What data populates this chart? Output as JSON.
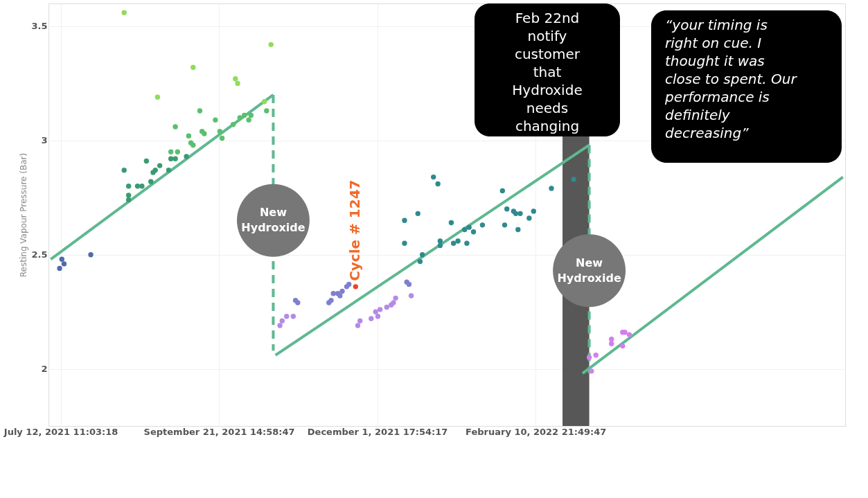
{
  "chart_data": {
    "type": "scatter",
    "ylabel": "Resting Vapour Pressure (Bar)",
    "xlim": [
      "2021-07-07",
      "2022-06-30"
    ],
    "ylim": [
      1.75,
      3.6
    ],
    "xticks": [
      {
        "value": "2021-07-12T11:03:18",
        "label": "July 12, 2021 11:03:18"
      },
      {
        "value": "2021-09-21T14:58:47",
        "label": "September 21, 2021 14:58:47"
      },
      {
        "value": "2021-12-01T17:54:17",
        "label": "December 1, 2021 17:54:17"
      },
      {
        "value": "2022-02-10T21:49:47",
        "label": "February 10, 2022 21:49:47"
      }
    ],
    "yticks": [
      2,
      2.5,
      3,
      3.5
    ],
    "grid": true,
    "marker": "circle",
    "bands": [
      {
        "axis": "x",
        "from": "2022-02-23",
        "to": "2022-03-07",
        "color": "#3a3a3a"
      }
    ],
    "series": [
      {
        "color": "#4f6bab",
        "x": [
          "2021-07-12",
          "2021-07-13",
          "2021-07-14",
          "2021-07-26"
        ],
        "values": [
          2.44,
          2.48,
          2.46,
          2.5
        ]
      },
      {
        "color": "#3b9a72",
        "x": [
          "2021-08-10",
          "2021-08-12",
          "2021-08-12",
          "2021-08-12",
          "2021-08-16",
          "2021-08-18",
          "2021-08-20",
          "2021-08-22",
          "2021-08-23",
          "2021-08-24",
          "2021-08-26",
          "2021-08-30",
          "2021-08-31",
          "2021-09-02",
          "2021-09-07"
        ],
        "values": [
          2.87,
          2.8,
          2.76,
          2.74,
          2.8,
          2.8,
          2.91,
          2.82,
          2.86,
          2.87,
          2.89,
          2.87,
          2.92,
          2.92,
          2.93
        ]
      },
      {
        "color": "#5bbf6e",
        "x": [
          "2021-08-31",
          "2021-09-02",
          "2021-09-03",
          "2021-09-08",
          "2021-09-09",
          "2021-09-10",
          "2021-09-13",
          "2021-09-14",
          "2021-09-15",
          "2021-09-20",
          "2021-09-22",
          "2021-09-23",
          "2021-09-28",
          "2021-10-01",
          "2021-10-03",
          "2021-10-05",
          "2021-10-06",
          "2021-10-13"
        ],
        "values": [
          2.95,
          3.06,
          2.95,
          3.02,
          2.99,
          2.98,
          3.13,
          3.04,
          3.03,
          3.09,
          3.04,
          3.01,
          3.07,
          3.1,
          3.11,
          3.09,
          3.11,
          3.13
        ]
      },
      {
        "color": "#8fdc5c",
        "x": [
          "2021-08-10",
          "2021-08-25",
          "2021-09-10",
          "2021-09-29",
          "2021-09-30",
          "2021-10-12",
          "2021-10-15"
        ],
        "values": [
          3.56,
          3.19,
          3.32,
          3.27,
          3.25,
          3.17,
          3.42
        ]
      },
      {
        "color": "#7f7fcf",
        "x": [
          "2021-10-26",
          "2021-10-27",
          "2021-11-10",
          "2021-11-11",
          "2021-11-12",
          "2021-11-14",
          "2021-11-15",
          "2021-11-16",
          "2021-11-18",
          "2021-11-19",
          "2021-12-15",
          "2021-12-16"
        ],
        "values": [
          2.3,
          2.29,
          2.29,
          2.3,
          2.33,
          2.33,
          2.32,
          2.34,
          2.36,
          2.37,
          2.38,
          2.37
        ]
      },
      {
        "color": "#b48ae6",
        "x": [
          "2021-10-19",
          "2021-10-20",
          "2021-10-22",
          "2021-10-25",
          "2021-11-23",
          "2021-11-24",
          "2021-11-29",
          "2021-12-01",
          "2021-12-02",
          "2021-12-03",
          "2021-12-06",
          "2021-12-08",
          "2021-12-09",
          "2021-12-10",
          "2021-12-17"
        ],
        "values": [
          2.19,
          2.21,
          2.23,
          2.23,
          2.19,
          2.21,
          2.22,
          2.25,
          2.23,
          2.26,
          2.27,
          2.28,
          2.29,
          2.31,
          2.32
        ]
      },
      {
        "color": "#e8452a",
        "x": [
          "2021-11-22"
        ],
        "values": [
          2.36
        ]
      },
      {
        "color": "#2f8a8f",
        "x": [
          "2021-12-14",
          "2021-12-14",
          "2021-12-20",
          "2021-12-21",
          "2021-12-22",
          "2021-12-27",
          "2021-12-29",
          "2021-12-30",
          "2021-12-30",
          "2022-01-04",
          "2022-01-05",
          "2022-01-07",
          "2022-01-10",
          "2022-01-11",
          "2022-01-12",
          "2022-01-14",
          "2022-01-18",
          "2022-01-27",
          "2022-01-28",
          "2022-01-29",
          "2022-02-01",
          "2022-02-02",
          "2022-02-03",
          "2022-02-04",
          "2022-02-08",
          "2022-02-10",
          "2022-02-18",
          "2022-02-28"
        ],
        "values": [
          2.65,
          2.55,
          2.68,
          2.47,
          2.5,
          2.84,
          2.81,
          2.54,
          2.56,
          2.64,
          2.55,
          2.56,
          2.61,
          2.55,
          2.62,
          2.6,
          2.63,
          2.78,
          2.63,
          2.7,
          2.69,
          2.68,
          2.61,
          2.68,
          2.66,
          2.69,
          2.79,
          2.83
        ]
      },
      {
        "color": "#d27ff0",
        "x": [
          "2022-03-07",
          "2022-03-08",
          "2022-03-10",
          "2022-03-17",
          "2022-03-17",
          "2022-03-22",
          "2022-03-22",
          "2022-03-23",
          "2022-03-25"
        ],
        "values": [
          2.05,
          1.99,
          2.06,
          2.11,
          2.13,
          2.16,
          2.1,
          2.16,
          2.15
        ]
      },
      {
        "type": "line",
        "marker": "none",
        "color": "#5fb891",
        "x": [
          "2021-07-08",
          "2021-10-16"
        ],
        "values": [
          2.48,
          3.2
        ]
      },
      {
        "type": "line",
        "marker": "none",
        "color": "#5fb891",
        "line_style": "dashed",
        "x": [
          "2021-10-16",
          "2021-10-16"
        ],
        "values": [
          3.2,
          2.08
        ]
      },
      {
        "type": "line",
        "marker": "none",
        "color": "#5fb891",
        "x": [
          "2021-10-17",
          "2022-03-07"
        ],
        "values": [
          2.06,
          2.98
        ]
      },
      {
        "type": "line",
        "marker": "none",
        "color": "#5fb891",
        "line_style": "dashed",
        "x": [
          "2022-03-07",
          "2022-03-07"
        ],
        "values": [
          2.98,
          1.98
        ]
      },
      {
        "type": "line",
        "marker": "none",
        "color": "#5fb891",
        "x": [
          "2022-03-04",
          "2022-06-29"
        ],
        "values": [
          1.98,
          2.84
        ]
      }
    ],
    "annotations": [
      {
        "text": "New Hydroxide",
        "x": "2021-10-16",
        "y": 2.65
      },
      {
        "text": "New Hydroxide",
        "x": "2022-03-07",
        "y": 2.43
      },
      {
        "text": "Cycle # 1247",
        "x": "2021-11-22",
        "y": 2.36
      },
      "Feb 22nd notify customer that Hydroxide needs changing",
      "“your timing is right on cue. I thought it was close to spent. Our performance is definitely decreasing”"
    ]
  }
}
